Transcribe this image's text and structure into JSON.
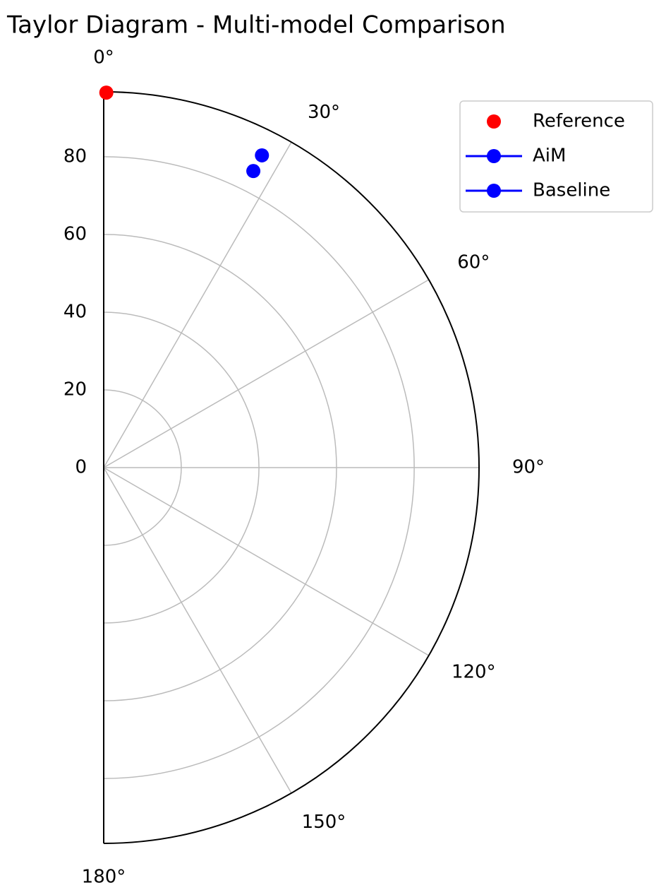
{
  "chart_data": {
    "type": "polar_scatter",
    "title": "Taylor Diagram - Multi-model Comparison",
    "thetalim": [
      0,
      180
    ],
    "thetaticks": [
      {
        "value": 0,
        "label": "0°"
      },
      {
        "value": 30,
        "label": "30°"
      },
      {
        "value": 60,
        "label": "60°"
      },
      {
        "value": 90,
        "label": "90°"
      },
      {
        "value": 120,
        "label": "120°"
      },
      {
        "value": 150,
        "label": "150°"
      },
      {
        "value": 180,
        "label": "180°"
      }
    ],
    "rlim": [
      0,
      96.7
    ],
    "rticks": [
      0,
      20,
      40,
      60,
      80
    ],
    "grid": true,
    "legend": "upper right",
    "series": [
      {
        "name": "Reference",
        "color": "#ff0000",
        "linestyle": "none",
        "theta": [
          0.4
        ],
        "r": [
          96.5
        ]
      },
      {
        "name": "AiM",
        "color": "#0000ff",
        "linestyle": "solid",
        "theta": [
          26.9
        ],
        "r": [
          90.1
        ]
      },
      {
        "name": "Baseline",
        "color": "#0000ff",
        "linestyle": "solid",
        "theta": [
          26.8
        ],
        "r": [
          85.5
        ]
      }
    ]
  }
}
